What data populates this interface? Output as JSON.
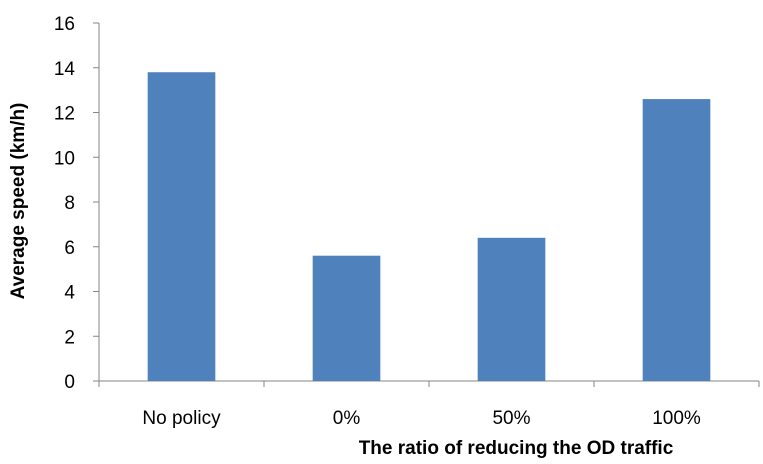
{
  "chart_data": {
    "type": "bar",
    "title": "",
    "categories": [
      "No policy",
      "0%",
      "50%",
      "100%"
    ],
    "values": [
      13.8,
      5.6,
      6.4,
      12.6
    ],
    "xlabel": "The ratio of reducing the OD traffic",
    "ylabel": "Average speed (km/h)",
    "ylim": [
      0,
      16
    ],
    "yticks": [
      0,
      2,
      4,
      6,
      8,
      10,
      12,
      14,
      16
    ],
    "grid": false,
    "legend": "none",
    "bar_color": "#4f81bd"
  }
}
